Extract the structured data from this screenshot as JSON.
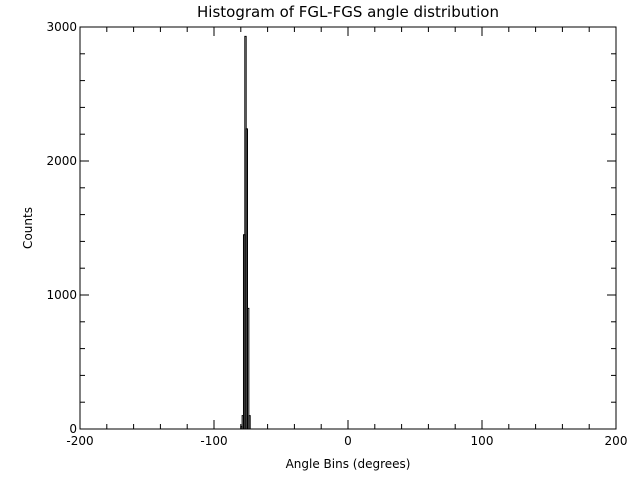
{
  "chart_data": {
    "type": "bar",
    "title": "Histogram of FGL-FGS angle distribution",
    "xlabel": "Angle Bins (degrees)",
    "ylabel": "Counts",
    "xlim": [
      -200,
      200
    ],
    "ylim": [
      0,
      3000
    ],
    "xticks": [
      -200,
      -100,
      0,
      100,
      200
    ],
    "yticks": [
      0,
      1000,
      2000,
      3000
    ],
    "xminor_step": 20,
    "yminor_step": 200,
    "grid": false,
    "bin_width": 1,
    "bins": [
      -81,
      -80,
      -79,
      -78,
      -77,
      -76,
      -75,
      -74,
      -73
    ],
    "values": [
      0,
      20,
      100,
      1450,
      2930,
      2240,
      900,
      100,
      0
    ]
  }
}
